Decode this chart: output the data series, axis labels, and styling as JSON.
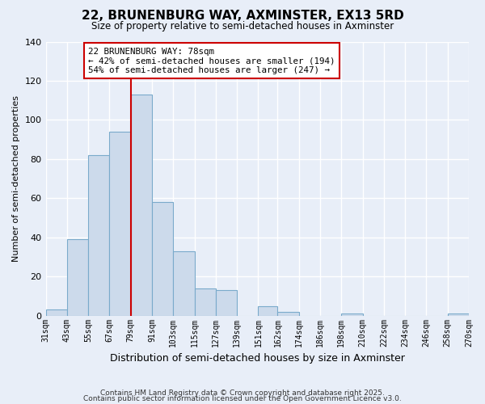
{
  "title": "22, BRUNENBURG WAY, AXMINSTER, EX13 5RD",
  "subtitle": "Size of property relative to semi-detached houses in Axminster",
  "xlabel": "Distribution of semi-detached houses by size in Axminster",
  "ylabel": "Number of semi-detached properties",
  "bar_color": "#ccdaeb",
  "bar_edge_color": "#7aaacb",
  "background_color": "#e8eef8",
  "vline_value": 79,
  "vline_color": "#cc0000",
  "annotation_title": "22 BRUNENBURG WAY: 78sqm",
  "annotation_line1": "← 42% of semi-detached houses are smaller (194)",
  "annotation_line2": "54% of semi-detached houses are larger (247) →",
  "annotation_box_color": "#cc0000",
  "ylim": [
    0,
    140
  ],
  "yticks": [
    0,
    20,
    40,
    60,
    80,
    100,
    120,
    140
  ],
  "bin_edges": [
    31,
    43,
    55,
    67,
    79,
    91,
    103,
    115,
    127,
    139,
    151,
    162,
    174,
    186,
    198,
    210,
    222,
    234,
    246,
    258,
    270
  ],
  "bin_labels": [
    "31sqm",
    "43sqm",
    "55sqm",
    "67sqm",
    "79sqm",
    "91sqm",
    "103sqm",
    "115sqm",
    "127sqm",
    "139sqm",
    "151sqm",
    "162sqm",
    "174sqm",
    "186sqm",
    "198sqm",
    "210sqm",
    "222sqm",
    "234sqm",
    "246sqm",
    "258sqm",
    "270sqm"
  ],
  "counts": [
    3,
    39,
    82,
    94,
    113,
    58,
    33,
    14,
    13,
    0,
    5,
    2,
    0,
    0,
    1,
    0,
    0,
    0,
    0,
    1
  ],
  "footer1": "Contains HM Land Registry data © Crown copyright and database right 2025.",
  "footer2": "Contains public sector information licensed under the Open Government Licence v3.0."
}
